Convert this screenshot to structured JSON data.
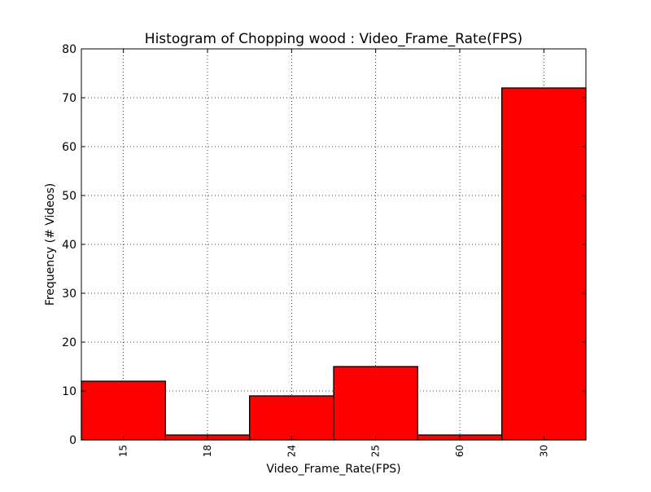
{
  "chart_data": {
    "type": "bar",
    "title": "Histogram of Chopping wood : Video_Frame_Rate(FPS)",
    "xlabel": "Video_Frame_Rate(FPS)",
    "ylabel": "Frequency (# Videos)",
    "categories": [
      "15",
      "18",
      "24",
      "25",
      "60",
      "30"
    ],
    "values": [
      12,
      1,
      9,
      15,
      1,
      72
    ],
    "ylim": [
      0,
      80
    ],
    "yticks": [
      0,
      10,
      20,
      30,
      40,
      50,
      60,
      70,
      80
    ],
    "grid": true,
    "bar_color": "#ff0000",
    "edge_color": "#000000"
  }
}
